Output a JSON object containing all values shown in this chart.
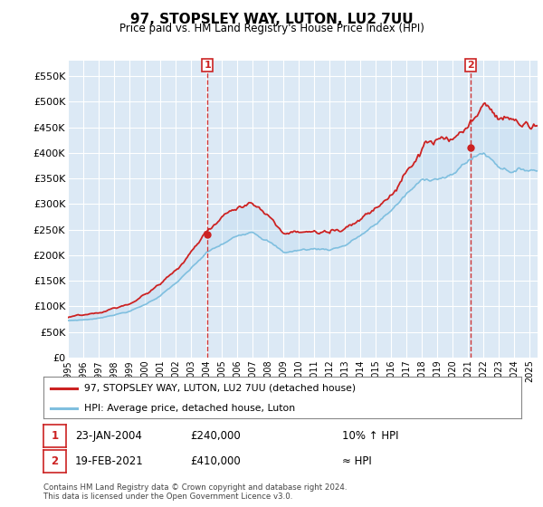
{
  "title": "97, STOPSLEY WAY, LUTON, LU2 7UU",
  "subtitle": "Price paid vs. HM Land Registry's House Price Index (HPI)",
  "bg_color": "#dce9f5",
  "grid_color": "#ffffff",
  "ylim": [
    0,
    580000
  ],
  "yticks": [
    0,
    50000,
    100000,
    150000,
    200000,
    250000,
    300000,
    350000,
    400000,
    450000,
    500000,
    550000
  ],
  "sale1_x": 2004.06,
  "sale1_price": 240000,
  "sale2_x": 2021.13,
  "sale2_price": 410000,
  "hpi_color": "#7fbfdf",
  "price_color": "#cc2222",
  "dashed_line_color": "#cc2222",
  "legend_label_red": "97, STOPSLEY WAY, LUTON, LU2 7UU (detached house)",
  "legend_label_blue": "HPI: Average price, detached house, Luton",
  "annotation1_date": "23-JAN-2004",
  "annotation1_price": "£240,000",
  "annotation1_hpi": "10% ↑ HPI",
  "annotation2_date": "19-FEB-2021",
  "annotation2_price": "£410,000",
  "annotation2_hpi": "≈ HPI",
  "footer": "Contains HM Land Registry data © Crown copyright and database right 2024.\nThis data is licensed under the Open Government Licence v3.0.",
  "xmin": 1995.0,
  "xmax": 2025.5
}
